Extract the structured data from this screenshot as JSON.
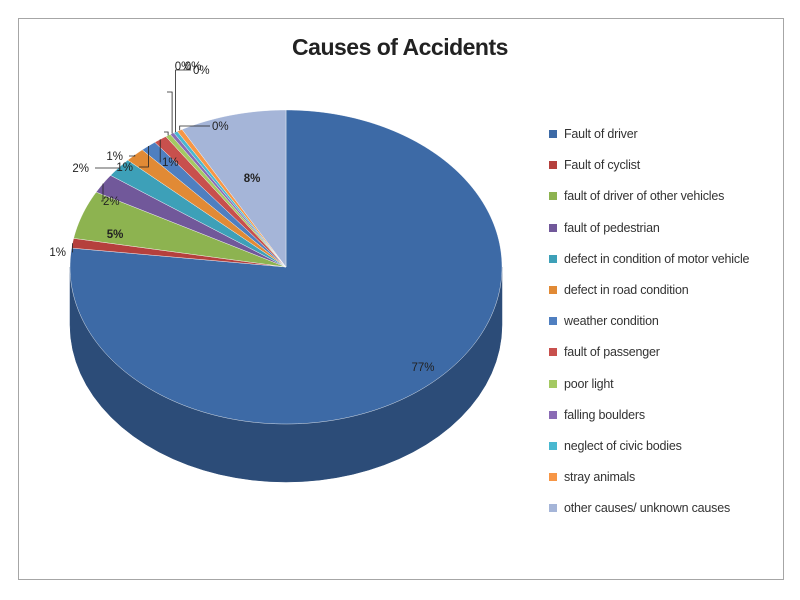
{
  "chart_data": {
    "type": "pie",
    "title": "Causes of Accidents",
    "legend_position": "right",
    "slices": [
      {
        "name": "Fault of driver",
        "value": 77,
        "label": "77%",
        "color": "#3d6aa6"
      },
      {
        "name": "Fault of cyclist",
        "value": 1,
        "label": "1%",
        "color": "#b5403d"
      },
      {
        "name": "fault of driver of other vehicles",
        "value": 5,
        "label": "5%",
        "color": "#8db350"
      },
      {
        "name": "fault of pedestrian",
        "value": 2,
        "label": "2%",
        "color": "#71589a"
      },
      {
        "name": "defect in condition of motor vehicle",
        "value": 2,
        "label": "2%",
        "color": "#3da0b8"
      },
      {
        "name": "defect in road condition",
        "value": 1.5,
        "label": "1%",
        "color": "#e18a35"
      },
      {
        "name": "weather condition",
        "value": 1.2,
        "label": "1%",
        "color": "#4f7fc0"
      },
      {
        "name": "fault of passenger",
        "value": 1,
        "label": "1%",
        "color": "#c8504d"
      },
      {
        "name": "poor light",
        "value": 0.4,
        "label": "0%",
        "color": "#a4c962"
      },
      {
        "name": "falling boulders",
        "value": 0.3,
        "label": "0%",
        "color": "#8a6bb5"
      },
      {
        "name": "neglect of civic bodies",
        "value": 0.3,
        "label": "0%",
        "color": "#49b8d0"
      },
      {
        "name": "stray animals",
        "value": 0.4,
        "label": "0%",
        "color": "#f79646"
      },
      {
        "name": "other causes/ unknown causes",
        "value": 8,
        "label": "8%",
        "color": "#a5b5d8"
      }
    ]
  }
}
